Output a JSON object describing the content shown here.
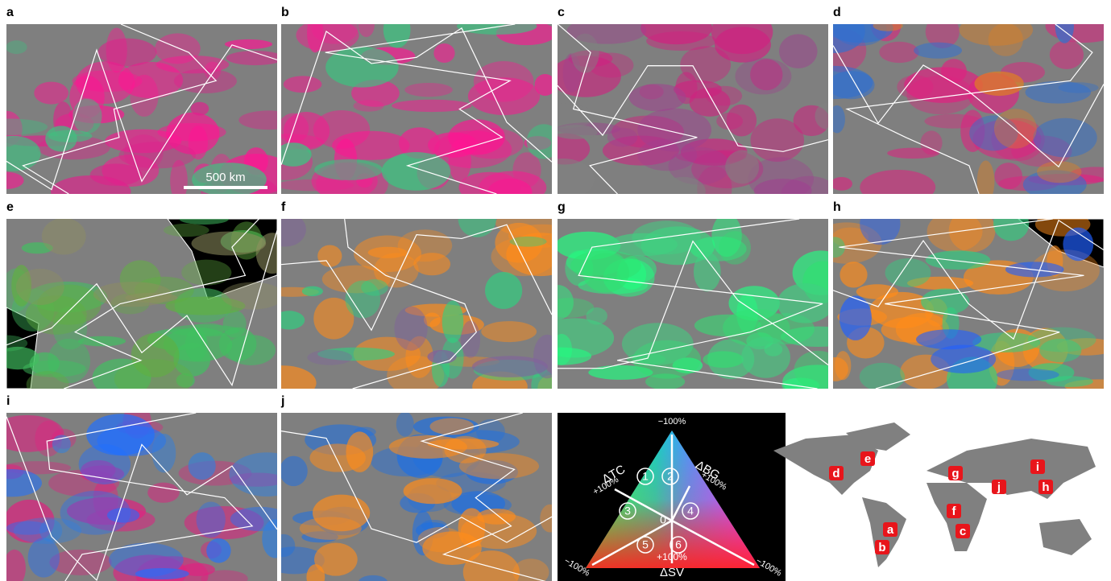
{
  "panels": [
    {
      "label": "a"
    },
    {
      "label": "b"
    },
    {
      "label": "c"
    },
    {
      "label": "d"
    },
    {
      "label": "e"
    },
    {
      "label": "f"
    },
    {
      "label": "g"
    },
    {
      "label": "h"
    },
    {
      "label": "i"
    },
    {
      "label": "j"
    }
  ],
  "scale_bar": "500 km",
  "legend": {
    "top": "−100%",
    "tc_label": "ΔTC",
    "tc_plus": "+100%",
    "bg_label": "ΔBG",
    "bg_plus": "+100%",
    "left": "−100%",
    "right": "−100%",
    "sv_plus": "+100%",
    "sv_label": "ΔSV",
    "center": "0",
    "sectors": [
      "1",
      "2",
      "3",
      "4",
      "5",
      "6"
    ]
  },
  "world_map": {
    "markers": [
      "d",
      "e",
      "g",
      "i",
      "h",
      "j",
      "f",
      "c",
      "a",
      "b"
    ]
  }
}
